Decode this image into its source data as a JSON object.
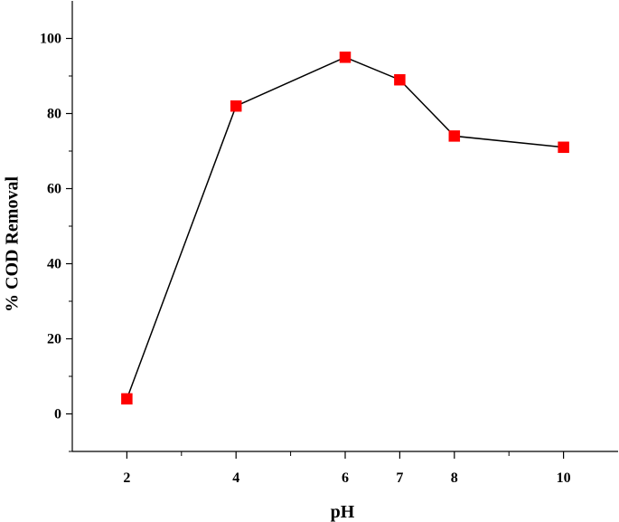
{
  "chart_data": {
    "type": "line",
    "xlabel": "pH",
    "ylabel": "% COD Removal",
    "xlim": [
      1,
      11
    ],
    "ylim": [
      -10,
      110
    ],
    "x_ticks": [
      2,
      4,
      6,
      7,
      8,
      10
    ],
    "x_tick_labels": [
      "2",
      "4",
      "6",
      "7",
      "8",
      "10"
    ],
    "x_minor_ticks": [
      3,
      5,
      9
    ],
    "y_ticks": [
      0,
      20,
      40,
      60,
      80,
      100
    ],
    "y_tick_labels": [
      "0",
      "20",
      "40",
      "60",
      "80",
      "100"
    ],
    "y_minor_ticks": [
      -10,
      10,
      30,
      50,
      70,
      90
    ],
    "grid": false,
    "legend": "none",
    "series": [
      {
        "x": [
          2,
          4,
          6,
          7,
          8,
          10
        ],
        "y": [
          4,
          82,
          95,
          89,
          74,
          71
        ],
        "line_color": "#000000",
        "marker": "square",
        "marker_color": "#ff0000"
      }
    ]
  }
}
